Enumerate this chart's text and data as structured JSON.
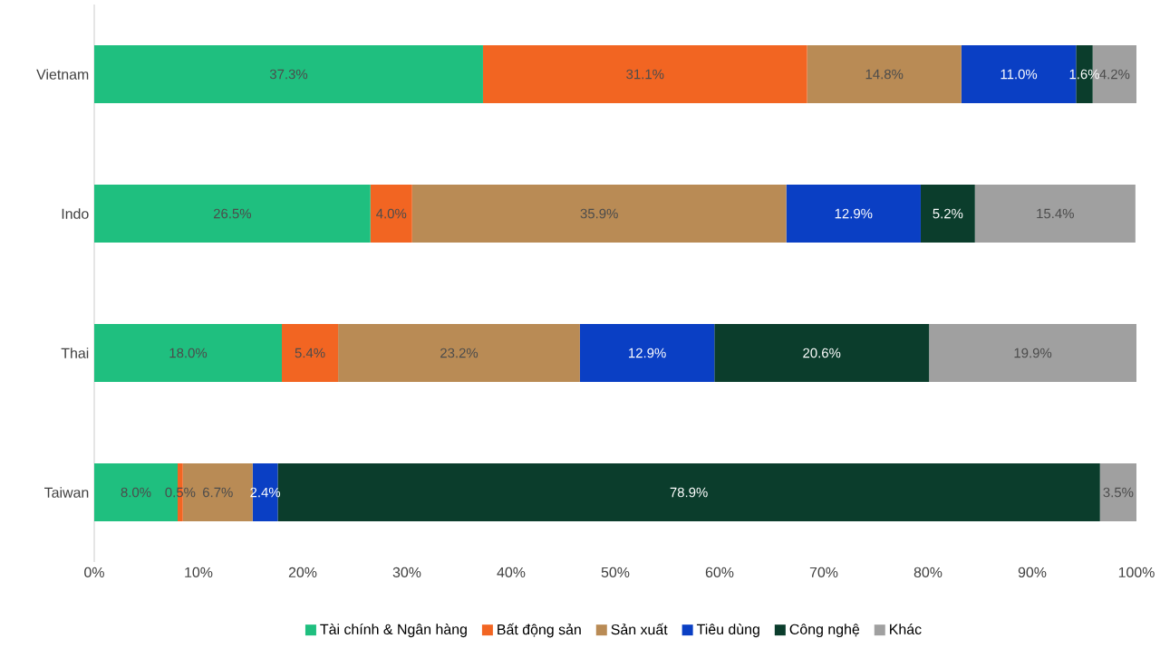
{
  "chart_data": {
    "type": "bar",
    "orientation": "horizontal",
    "stacked": true,
    "categories": [
      "Vietnam",
      "Indo",
      "Thai",
      "Taiwan"
    ],
    "series": [
      {
        "name": "Tài chính & Ngân hàng",
        "color": "#1fbf7f",
        "values": [
          37.3,
          26.5,
          18.0,
          8.0
        ],
        "value_labels": [
          "37.3%",
          "26.5%",
          "18.0%",
          "8.0%"
        ]
      },
      {
        "name": "Bất động sản",
        "color": "#f26522",
        "values": [
          31.1,
          4.0,
          5.4,
          0.5
        ],
        "value_labels": [
          "31.1%",
          "4.0%",
          "5.4%",
          "0.5%"
        ]
      },
      {
        "name": "Sản xuất",
        "color": "#b98b55",
        "values": [
          14.8,
          35.9,
          23.2,
          6.7
        ],
        "value_labels": [
          "14.8%",
          "35.9%",
          "23.2%",
          "6.7%"
        ]
      },
      {
        "name": "Tiêu dùng",
        "color": "#0a3fc4",
        "values": [
          11.0,
          12.9,
          12.9,
          2.4
        ],
        "value_labels": [
          "11.0%",
          "12.9%",
          "12.9%",
          "2.4%"
        ]
      },
      {
        "name": "Công nghệ",
        "color": "#0b3d2c",
        "values": [
          1.6,
          5.2,
          20.6,
          78.9
        ],
        "value_labels": [
          "1.6%",
          "5.2%",
          "20.6%",
          "78.9%"
        ]
      },
      {
        "name": "Khác",
        "color": "#a0a0a0",
        "values": [
          4.2,
          15.4,
          19.9,
          3.5
        ],
        "value_labels": [
          "4.2%",
          "15.4%",
          "19.9%",
          "3.5%"
        ]
      }
    ],
    "xlim": [
      0,
      100
    ],
    "xticks": [
      {
        "value": 0,
        "label": "0%"
      },
      {
        "value": 10,
        "label": "10%"
      },
      {
        "value": 20,
        "label": "20%"
      },
      {
        "value": 30,
        "label": "30%"
      },
      {
        "value": 40,
        "label": "40%"
      },
      {
        "value": 50,
        "label": "50%"
      },
      {
        "value": 60,
        "label": "60%"
      },
      {
        "value": 70,
        "label": "70%"
      },
      {
        "value": 80,
        "label": "80%"
      },
      {
        "value": 90,
        "label": "90%"
      },
      {
        "value": 100,
        "label": "100%"
      }
    ],
    "legend": "bottom",
    "grid": false
  }
}
